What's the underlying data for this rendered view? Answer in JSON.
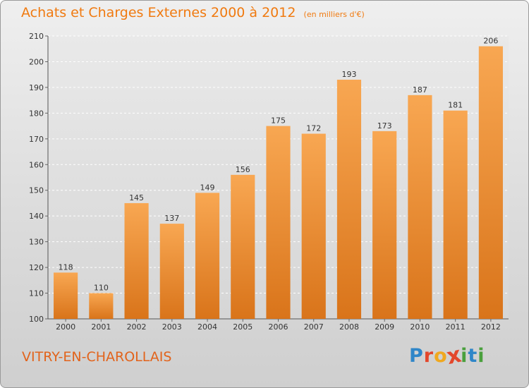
{
  "header": {
    "title": "Achats et Charges Externes 2000 à 2012",
    "unit": "(en milliers d'€)"
  },
  "footer": {
    "commune": "VITRY-EN-CHAROLLAIS",
    "logo_text": "Proxiti"
  },
  "colors": {
    "bar_top": "#f8a752",
    "bar_bottom": "#d9741a",
    "title": "#f07a10",
    "commune": "#e2631b",
    "logo": [
      "#2f86c8",
      "#e3472b",
      "#f0a81e",
      "#e3472b",
      "#4aa03d",
      "#2f86c8",
      "#4aa03d"
    ]
  },
  "chart_data": {
    "type": "bar",
    "title": "Achats et Charges Externes 2000 à 2012",
    "subtitle": "(en milliers d'€)",
    "xlabel": "",
    "ylabel": "",
    "categories": [
      "2000",
      "2001",
      "2002",
      "2003",
      "2004",
      "2005",
      "2006",
      "2007",
      "2008",
      "2009",
      "2010",
      "2011",
      "2012"
    ],
    "values": [
      118,
      110,
      145,
      137,
      149,
      156,
      175,
      172,
      193,
      173,
      187,
      181,
      206
    ],
    "ylim": [
      100,
      210
    ],
    "yticks": [
      100,
      110,
      120,
      130,
      140,
      150,
      160,
      170,
      180,
      190,
      200,
      210
    ],
    "grid": true,
    "data_labels": true
  }
}
